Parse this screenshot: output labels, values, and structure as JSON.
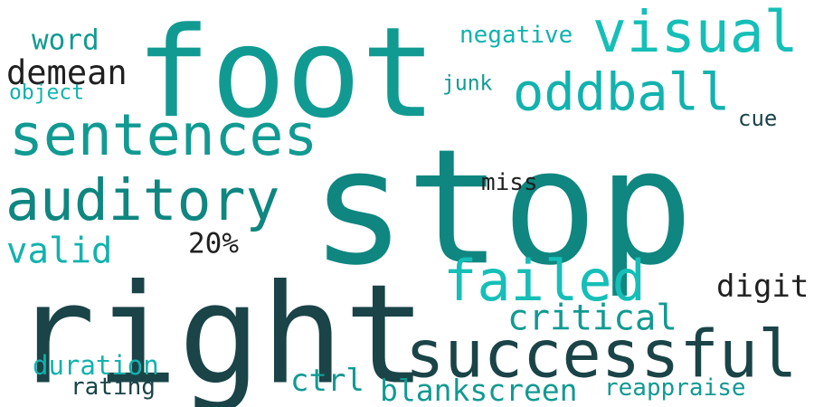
{
  "colors": {
    "background": "#ffffff",
    "dark": "#1a4447",
    "deep_teal": "#0f8680",
    "teal": "#119a92",
    "aqua": "#12b2ae",
    "bright": "#15bfb7",
    "ink": "#202020"
  },
  "words": {
    "stop": {
      "text": "stop",
      "weight": 100
    },
    "right": {
      "text": "right",
      "weight": 92
    },
    "foot": {
      "text": "foot",
      "weight": 84
    },
    "successful": {
      "text": "successful",
      "weight": 48
    },
    "sentences": {
      "text": "sentences",
      "weight": 42
    },
    "auditory": {
      "text": "auditory",
      "weight": 42
    },
    "oddball": {
      "text": "oddball",
      "weight": 38
    },
    "visual": {
      "text": "visual",
      "weight": 38
    },
    "failed": {
      "text": "failed",
      "weight": 38
    },
    "critical": {
      "text": "critical",
      "weight": 28
    },
    "valid": {
      "text": "valid",
      "weight": 26
    },
    "demean": {
      "text": "demean",
      "weight": 26
    },
    "digit": {
      "text": "digit",
      "weight": 24
    },
    "blankscreen": {
      "text": "blankscreen",
      "weight": 24
    },
    "ctrl": {
      "text": "ctrl",
      "weight": 24
    },
    "word": {
      "text": "word",
      "weight": 22
    },
    "20%": {
      "text": "20%",
      "weight": 22
    },
    "duration": {
      "text": "duration",
      "weight": 20
    },
    "negative": {
      "text": "negative",
      "weight": 18
    },
    "miss": {
      "text": "miss",
      "weight": 18
    },
    "reappraise": {
      "text": "reappraise",
      "weight": 18
    },
    "rating": {
      "text": "rating",
      "weight": 18
    },
    "cue": {
      "text": "cue",
      "weight": 16
    },
    "object": {
      "text": "object",
      "weight": 16
    },
    "junk": {
      "text": "junk",
      "weight": 16
    }
  }
}
